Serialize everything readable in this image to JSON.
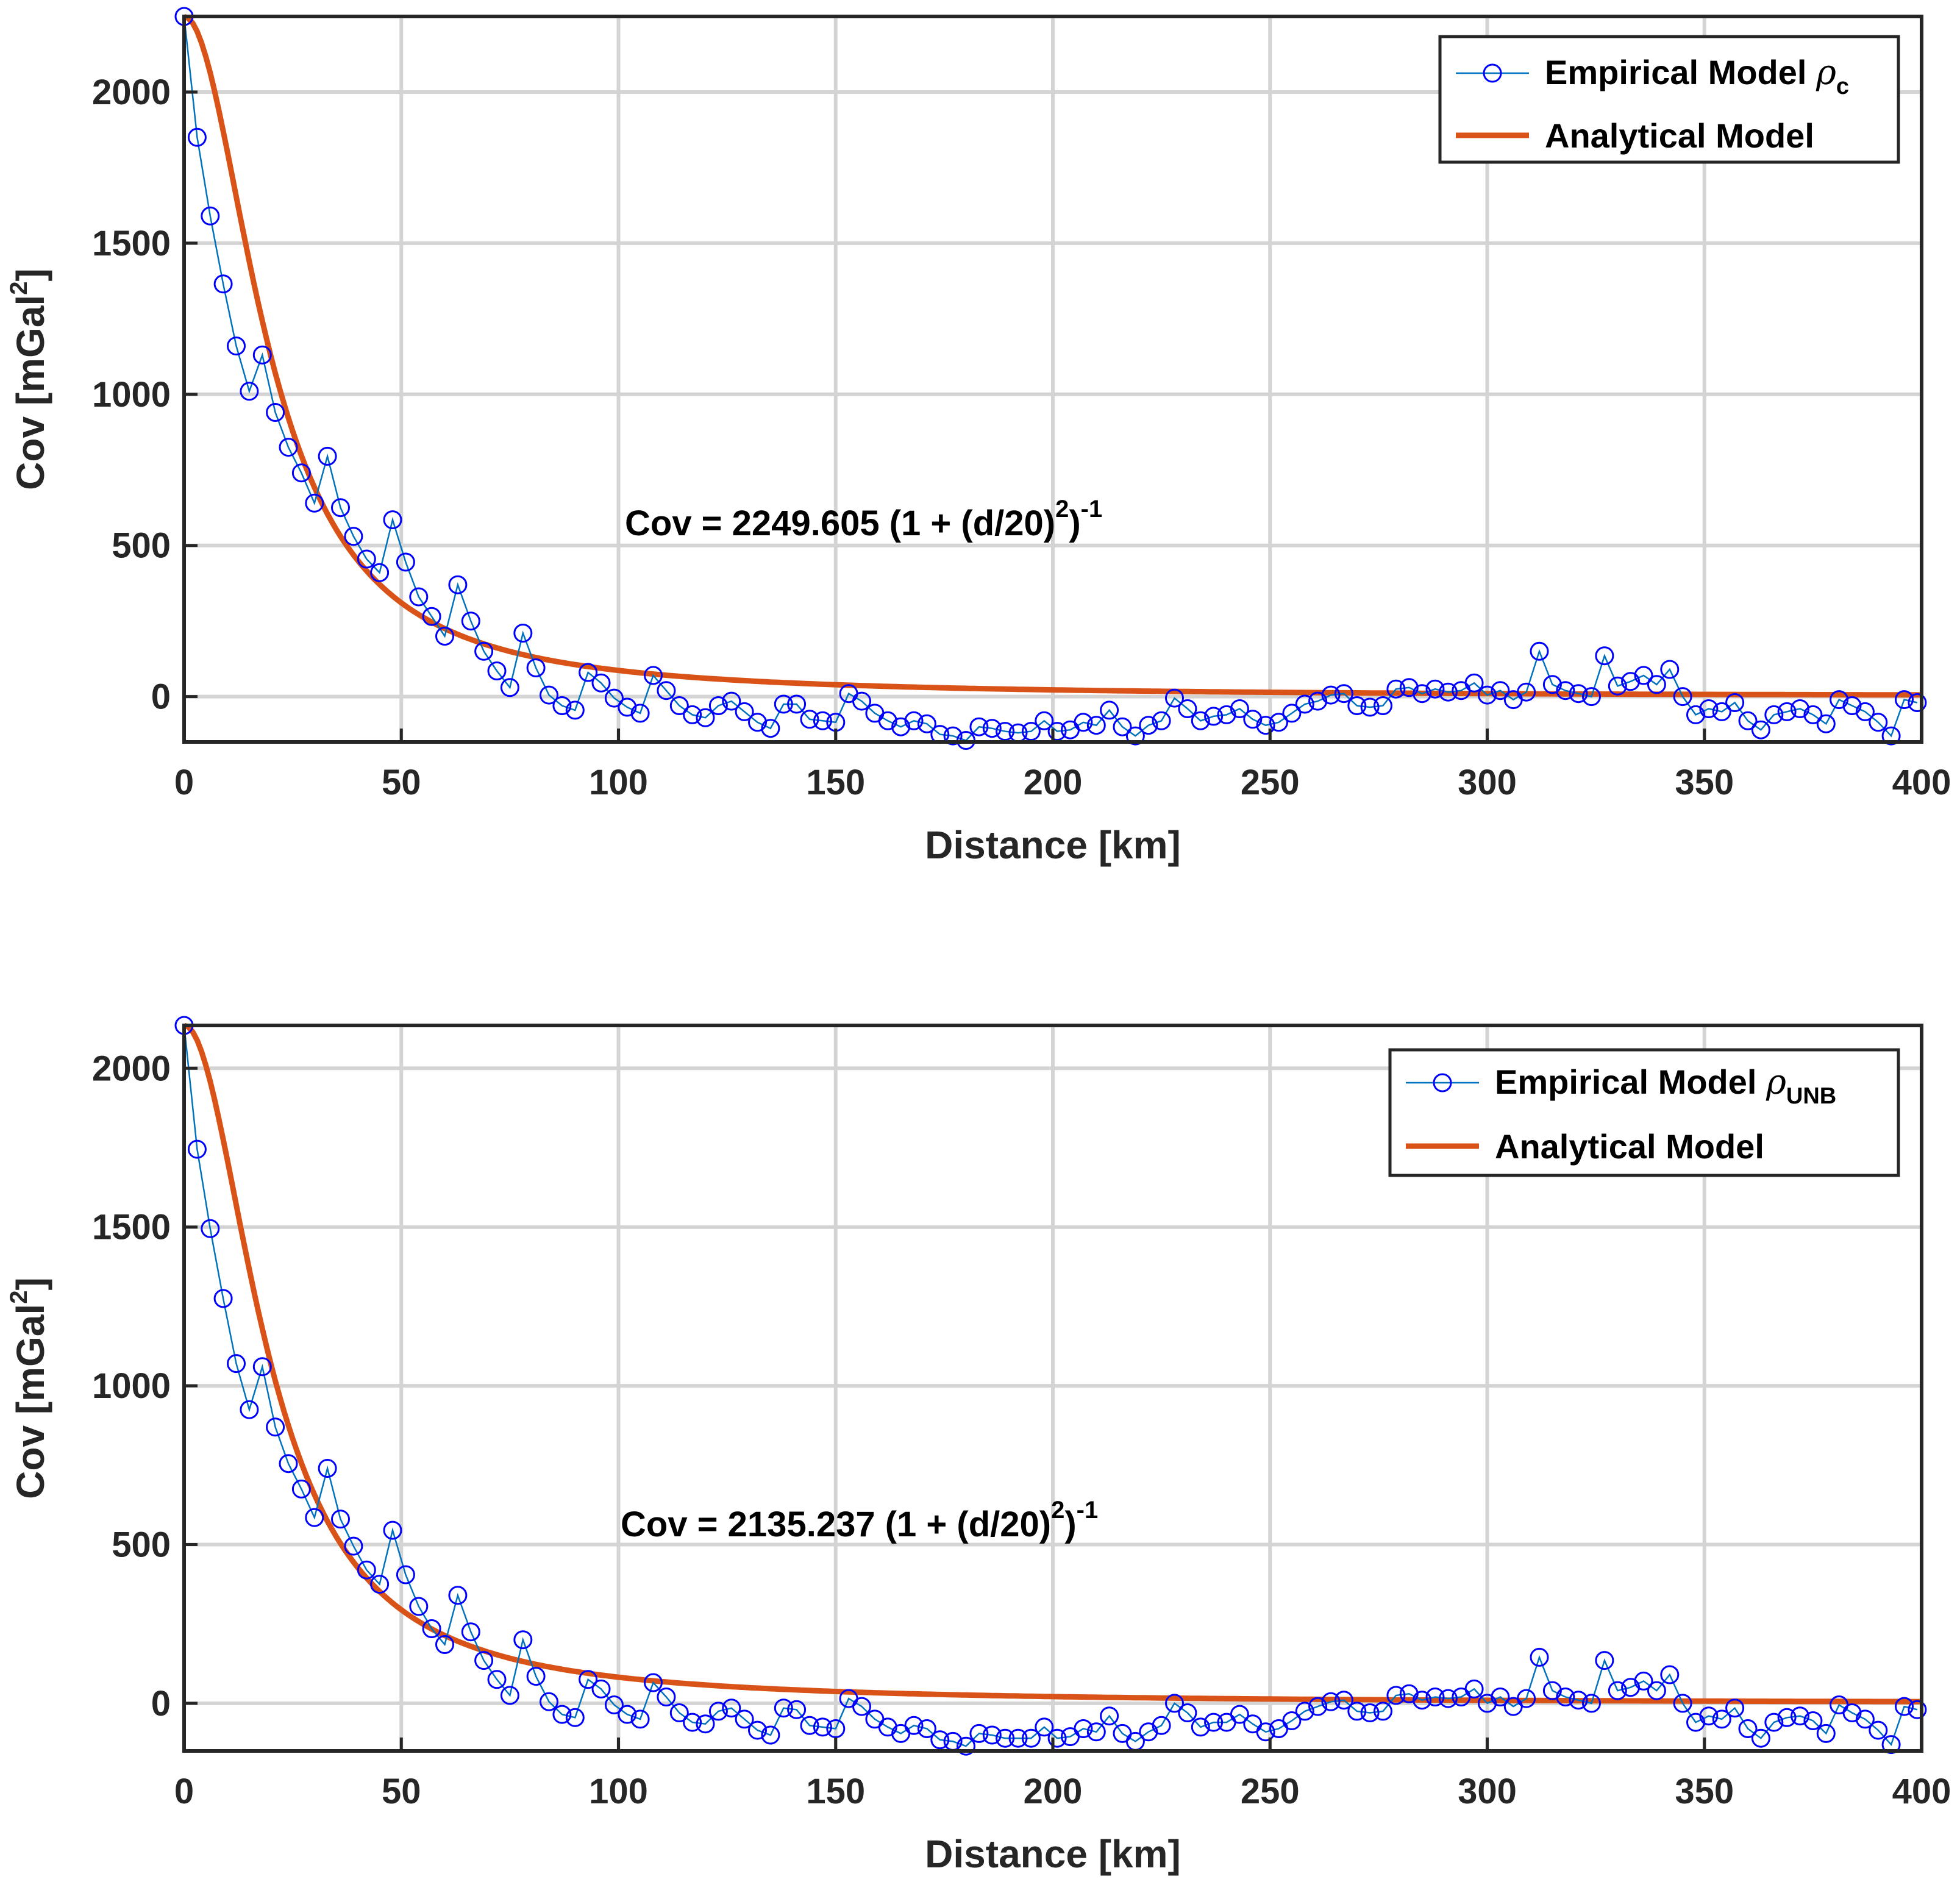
{
  "colors": {
    "empirical": "#0000ff",
    "empirical_line": "#0072bd",
    "analytical": "#d95319",
    "grid": "#d4d4d4",
    "axis": "#262626"
  },
  "chart_data": [
    {
      "type": "line",
      "xlabel": "Distance [km]",
      "ylabel_main": "Cov [mGal",
      "ylabel_sup": "2",
      "ylabel_close": "]",
      "xlim": [
        0,
        400
      ],
      "ylim": [
        -150,
        2250
      ],
      "xticks": [
        0,
        50,
        100,
        150,
        200,
        250,
        300,
        350,
        400
      ],
      "yticks": [
        0,
        500,
        1000,
        1500,
        2000
      ],
      "grid": true,
      "legend_position": "top-right",
      "legend": {
        "empirical_label": "Empirical Model",
        "empirical_symbol": "ρ",
        "empirical_subscript": "c",
        "analytical_label": "Analytical Model"
      },
      "equation": {
        "prefix": "Cov = ",
        "c0": "2249.605",
        "body": " (1 + (d/20)",
        "sup1": "2",
        "close": ")",
        "sup2": "-1"
      },
      "analytical_model": {
        "c0": 2249.605,
        "d0": 20
      },
      "series": [
        {
          "name": "Empirical Model",
          "x": [
            0,
            3,
            6,
            9,
            12,
            15,
            18,
            21,
            24,
            27,
            30,
            33,
            36,
            39,
            42,
            45,
            48,
            51,
            54,
            57,
            60,
            63,
            66,
            69,
            72,
            75,
            78,
            81,
            84,
            87,
            90,
            93,
            96,
            99,
            102,
            105,
            108,
            111,
            114,
            117,
            120,
            123,
            126,
            129,
            132,
            135,
            138,
            141,
            144,
            147,
            150,
            153,
            156,
            159,
            162,
            165,
            168,
            171,
            174,
            177,
            180,
            183,
            186,
            189,
            192,
            195,
            198,
            201,
            204,
            207,
            210,
            213,
            216,
            219,
            222,
            225,
            228,
            231,
            234,
            237,
            240,
            243,
            246,
            249,
            252,
            255,
            258,
            261,
            264,
            267,
            270,
            273,
            276,
            279,
            282,
            285,
            288,
            291,
            294,
            297,
            300,
            303,
            306,
            309,
            312,
            315,
            318,
            321,
            324,
            327,
            330,
            333,
            336,
            339,
            342,
            345,
            348,
            351,
            354,
            357,
            360,
            363,
            366,
            369,
            372,
            375,
            378,
            381,
            384,
            387,
            390,
            393,
            396,
            399
          ],
          "values": [
            2250,
            1850,
            1590,
            1365,
            1160,
            1010,
            1130,
            940,
            825,
            740,
            640,
            795,
            625,
            530,
            455,
            410,
            585,
            445,
            330,
            265,
            200,
            370,
            250,
            150,
            85,
            30,
            210,
            95,
            5,
            -30,
            -45,
            80,
            45,
            -5,
            -35,
            -55,
            70,
            20,
            -30,
            -60,
            -70,
            -30,
            -15,
            -50,
            -85,
            -105,
            -25,
            -25,
            -75,
            -80,
            -85,
            10,
            -15,
            -55,
            -80,
            -100,
            -80,
            -90,
            -125,
            -130,
            -145,
            -100,
            -105,
            -115,
            -120,
            -115,
            -80,
            -115,
            -110,
            -85,
            -95,
            -45,
            -100,
            -130,
            -95,
            -80,
            -5,
            -40,
            -80,
            -65,
            -60,
            -40,
            -75,
            -95,
            -85,
            -55,
            -25,
            -15,
            5,
            10,
            -30,
            -35,
            -30,
            25,
            30,
            10,
            25,
            15,
            20,
            45,
            5,
            20,
            -10,
            15,
            150,
            40,
            20,
            10,
            0,
            135,
            35,
            50,
            70,
            40,
            90,
            0,
            -60,
            -40,
            -50,
            -20,
            -80,
            -110,
            -60,
            -50,
            -40,
            -60,
            -90,
            -10,
            -30,
            -50,
            -85,
            -130,
            -10,
            -20
          ]
        }
      ]
    },
    {
      "type": "line",
      "xlabel": "Distance [km]",
      "ylabel_main": "Cov [mGal",
      "ylabel_sup": "2",
      "ylabel_close": "]",
      "xlim": [
        0,
        400
      ],
      "ylim": [
        -150,
        2135
      ],
      "xticks": [
        0,
        50,
        100,
        150,
        200,
        250,
        300,
        350,
        400
      ],
      "yticks": [
        0,
        500,
        1000,
        1500,
        2000
      ],
      "grid": true,
      "legend_position": "top-right",
      "legend": {
        "empirical_label": "Empirical Model",
        "empirical_symbol": "ρ",
        "empirical_subscript": "UNB",
        "analytical_label": "Analytical Model"
      },
      "equation": {
        "prefix": "Cov = ",
        "c0": "2135.237",
        "body": " (1 + (d/20)",
        "sup1": "2",
        "close": ")",
        "sup2": "-1"
      },
      "analytical_model": {
        "c0": 2135.237,
        "d0": 20
      },
      "series": [
        {
          "name": "Empirical Model",
          "x": [
            0,
            3,
            6,
            9,
            12,
            15,
            18,
            21,
            24,
            27,
            30,
            33,
            36,
            39,
            42,
            45,
            48,
            51,
            54,
            57,
            60,
            63,
            66,
            69,
            72,
            75,
            78,
            81,
            84,
            87,
            90,
            93,
            96,
            99,
            102,
            105,
            108,
            111,
            114,
            117,
            120,
            123,
            126,
            129,
            132,
            135,
            138,
            141,
            144,
            147,
            150,
            153,
            156,
            159,
            162,
            165,
            168,
            171,
            174,
            177,
            180,
            183,
            186,
            189,
            192,
            195,
            198,
            201,
            204,
            207,
            210,
            213,
            216,
            219,
            222,
            225,
            228,
            231,
            234,
            237,
            240,
            243,
            246,
            249,
            252,
            255,
            258,
            261,
            264,
            267,
            270,
            273,
            276,
            279,
            282,
            285,
            288,
            291,
            294,
            297,
            300,
            303,
            306,
            309,
            312,
            315,
            318,
            321,
            324,
            327,
            330,
            333,
            336,
            339,
            342,
            345,
            348,
            351,
            354,
            357,
            360,
            363,
            366,
            369,
            372,
            375,
            378,
            381,
            384,
            387,
            390,
            393,
            396,
            399
          ],
          "values": [
            2135,
            1745,
            1495,
            1275,
            1070,
            925,
            1060,
            870,
            755,
            675,
            585,
            740,
            580,
            495,
            420,
            375,
            545,
            405,
            305,
            235,
            185,
            340,
            225,
            135,
            75,
            25,
            200,
            85,
            5,
            -35,
            -45,
            75,
            45,
            -5,
            -35,
            -50,
            65,
            20,
            -30,
            -60,
            -65,
            -25,
            -15,
            -50,
            -85,
            -100,
            -15,
            -20,
            -70,
            -75,
            -80,
            15,
            -10,
            -50,
            -75,
            -95,
            -70,
            -80,
            -115,
            -120,
            -135,
            -95,
            -100,
            -110,
            -110,
            -110,
            -75,
            -110,
            -105,
            -80,
            -90,
            -40,
            -95,
            -120,
            -90,
            -70,
            0,
            -30,
            -75,
            -60,
            -60,
            -35,
            -65,
            -90,
            -80,
            -55,
            -25,
            -10,
            5,
            10,
            -25,
            -30,
            -25,
            25,
            30,
            10,
            20,
            15,
            20,
            45,
            0,
            20,
            -10,
            15,
            145,
            40,
            20,
            10,
            0,
            135,
            40,
            50,
            70,
            40,
            90,
            0,
            -60,
            -40,
            -50,
            -15,
            -80,
            -110,
            -60,
            -45,
            -40,
            -55,
            -95,
            -5,
            -30,
            -50,
            -85,
            -130,
            -10,
            -20
          ]
        }
      ]
    }
  ]
}
